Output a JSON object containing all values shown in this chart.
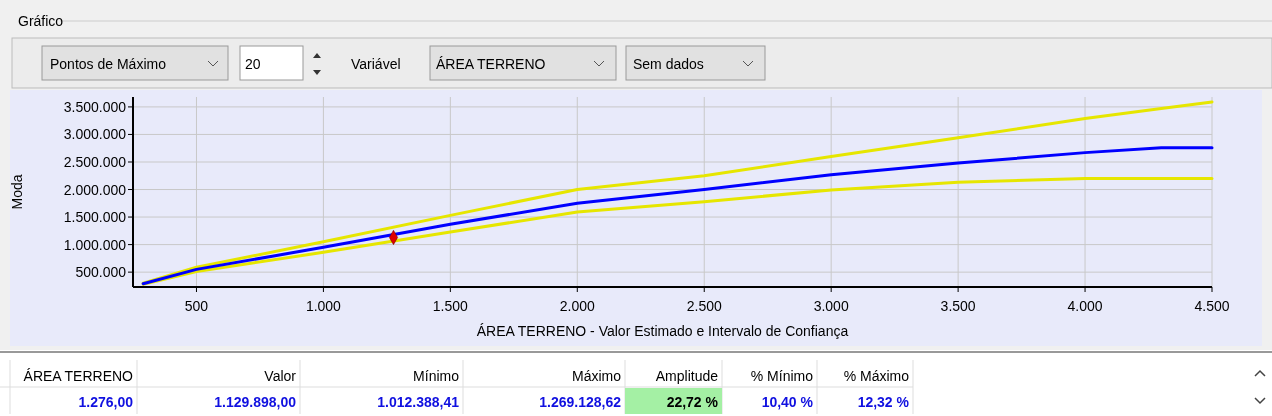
{
  "chart_data": {
    "type": "line",
    "xlabel": "ÁREA TERRENO - Valor Estimado e Intervalo de Confiança",
    "ylabel": "Moda",
    "x": [
      290,
      500,
      1000,
      1500,
      2000,
      2500,
      3000,
      3500,
      4000,
      4300,
      4500
    ],
    "series": [
      {
        "color": "#e6e600",
        "values": [
          300000,
          590000,
          1050000,
          1530000,
          2000000,
          2250000,
          2600000,
          2940000,
          3290000,
          3470000,
          3590000
        ]
      },
      {
        "color": "#e6e600",
        "values": [
          280000,
          510000,
          860000,
          1230000,
          1590000,
          1780000,
          1990000,
          2130000,
          2200000,
          2200000,
          2200000
        ]
      },
      {
        "color": "#0000ff",
        "values": [
          290000,
          550000,
          950000,
          1370000,
          1750000,
          2000000,
          2270000,
          2480000,
          2670000,
          2760000,
          2760000
        ]
      },
      {
        "type": "scatter",
        "marker": "diamond",
        "color": "#e00000",
        "x": [
          1276
        ],
        "values": [
          1130000
        ]
      }
    ],
    "xlim": [
      250,
      4500
    ],
    "ylim": [
      230000,
      3680000
    ],
    "xticks": [
      {
        "value": 500,
        "label": "500"
      },
      {
        "value": 1000,
        "label": "1.000"
      },
      {
        "value": 1500,
        "label": "1.500"
      },
      {
        "value": 2000,
        "label": "2.000"
      },
      {
        "value": 2500,
        "label": "2.500"
      },
      {
        "value": 3000,
        "label": "3.000"
      },
      {
        "value": 3500,
        "label": "3.500"
      },
      {
        "value": 4000,
        "label": "4.000"
      },
      {
        "value": 4500,
        "label": "4.500"
      }
    ],
    "yticks": [
      {
        "value": 500000,
        "label": "500.000"
      },
      {
        "value": 1000000,
        "label": "1.000.000"
      },
      {
        "value": 1500000,
        "label": "1.500.000"
      },
      {
        "value": 2000000,
        "label": "2.000.000"
      },
      {
        "value": 2500000,
        "label": "2.500.000"
      },
      {
        "value": 3000000,
        "label": "3.000.000"
      },
      {
        "value": 3500000,
        "label": "3.500.000"
      }
    ],
    "grid": true,
    "annotations": [
      "Gráfico",
      "Pontos de Máximo",
      "20",
      "Variável",
      "ÁREA TERRENO",
      "Sem dados",
      "ÁREA TERRENO",
      "Valor",
      "Mínimo",
      "Máximo",
      "Amplitude",
      "% Mínimo",
      "% Máximo",
      "1.276,00",
      "1.129.898,00",
      "1.012.388,41",
      "1.269.128,62",
      "22,72 %",
      "10,40 %",
      "12,32 %"
    ]
  }
}
